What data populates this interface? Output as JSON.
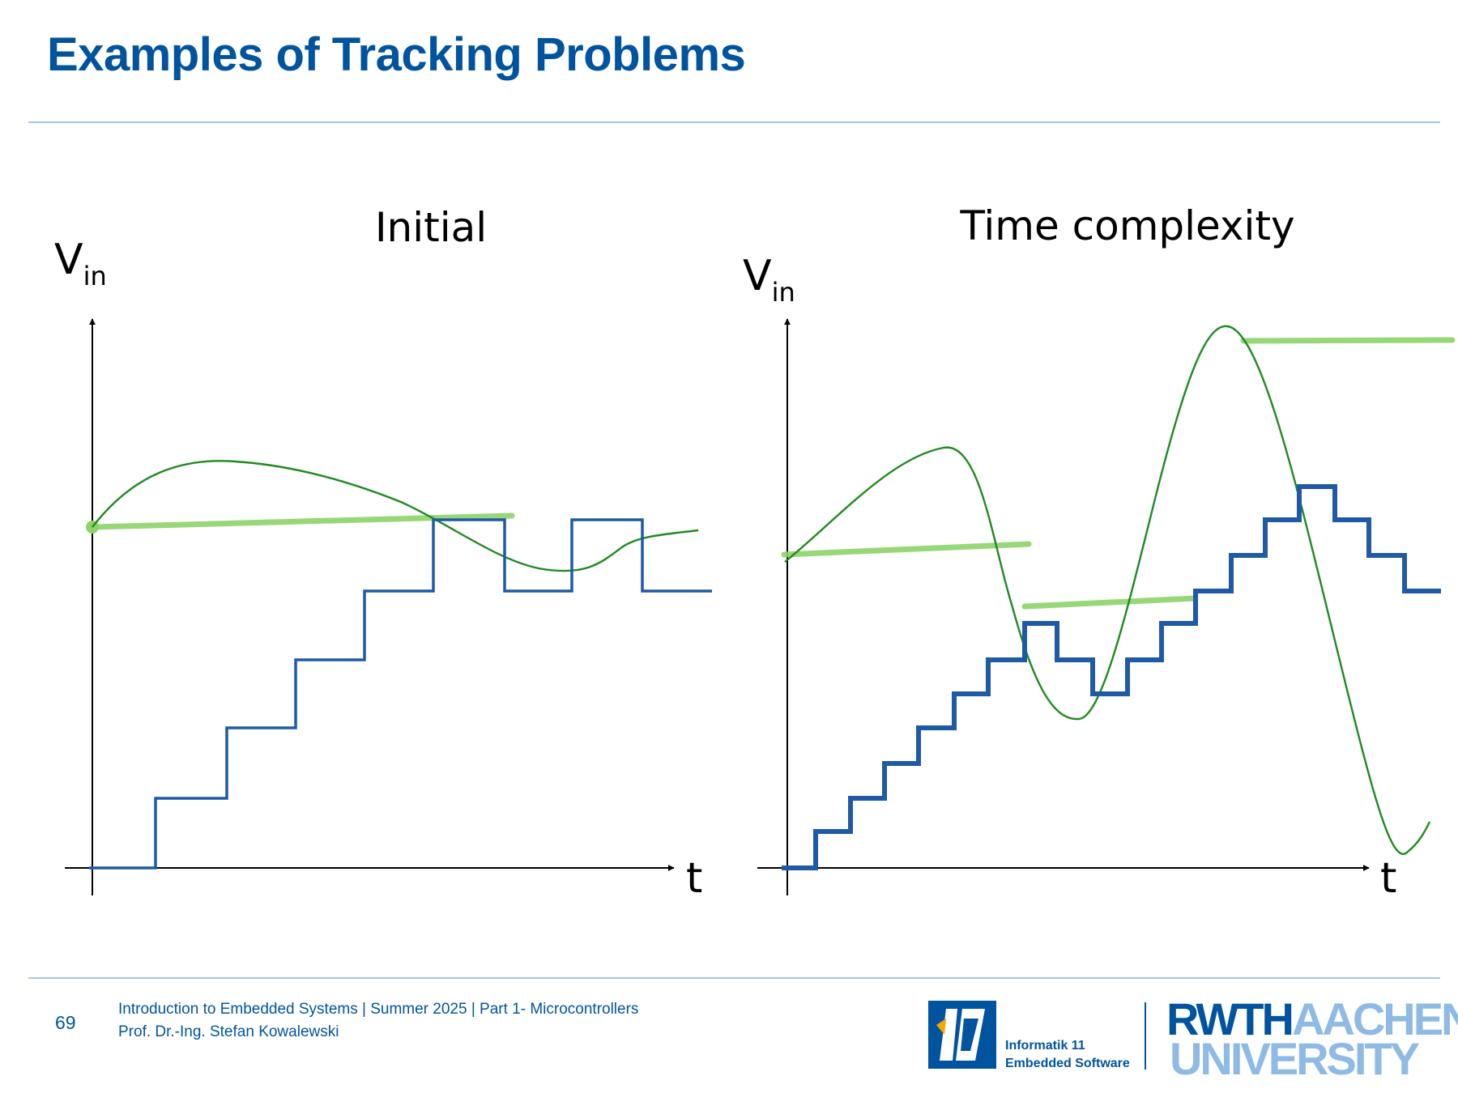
{
  "slide": {
    "title": "Examples of Tracking Problems",
    "page_number": "69",
    "footer_line1": "Introduction to Embedded Systems | Summer 2025 | Part 1- Microcontrollers",
    "footer_line2": "Prof. Dr.-Ing. Stefan Kowalewski"
  },
  "logos": {
    "i11_line1": "Informatik 11",
    "i11_line2": "Embedded Software",
    "rwth_word1": "RWTH",
    "rwth_word2": "AACHEN",
    "rwth_word3": "UNIVERSITY"
  },
  "colors": {
    "title_blue": "#00549f",
    "staircase_blue": "#1f5aa6",
    "signal_green": "#1f8a1f",
    "sample_hold_green": "#8dd36a",
    "rule_light_blue": "#a7c6ea"
  },
  "panels": [
    {
      "title": "Initial",
      "y_label": "V",
      "y_label_sub": "in",
      "x_label": "t"
    },
    {
      "title": "Time complexity",
      "y_label": "V",
      "y_label_sub": "in",
      "x_label": "t"
    }
  ]
}
